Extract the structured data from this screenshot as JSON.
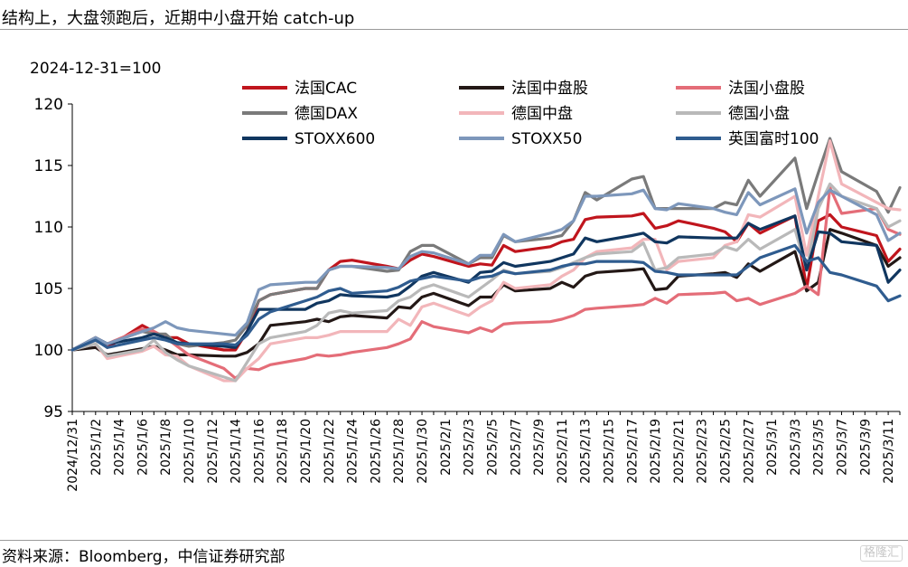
{
  "header": {
    "title": "结构上，大盘领跑后，近期中小盘开始 catch-up"
  },
  "footer": {
    "source": "资料来源：Bloomberg，中信证券研究部",
    "watermark": "格隆汇"
  },
  "chart_data": {
    "type": "line",
    "base_note": "2024-12-31=100",
    "xlabel": "",
    "ylabel": "",
    "ylim": [
      95,
      120
    ],
    "yticks": [
      95,
      100,
      105,
      110,
      115,
      120
    ],
    "xtick_labels": [
      "2024/12/31",
      "2025/1/2",
      "2025/1/4",
      "2025/1/6",
      "2025/1/8",
      "2025/1/10",
      "2025/1/12",
      "2025/1/14",
      "2025/1/16",
      "2025/1/18",
      "2025/1/20",
      "2025/1/22",
      "2025/1/24",
      "2025/1/26",
      "2025/1/28",
      "2025/1/30",
      "2025/2/1",
      "2025/2/3",
      "2025/2/5",
      "2025/2/7",
      "2025/2/9",
      "2025/2/11",
      "2025/2/13",
      "2025/2/15",
      "2025/2/17",
      "2025/2/19",
      "2025/2/21",
      "2025/2/23",
      "2025/2/25",
      "2025/2/27",
      "2025/3/1",
      "2025/3/3",
      "2025/3/5",
      "2025/3/7",
      "2025/3/9",
      "2025/3/11"
    ],
    "x_start": "2024-12-31",
    "x_end": "2025-03-12",
    "dates": [
      "2024-12-31",
      "2025-01-02",
      "2025-01-03",
      "2025-01-06",
      "2025-01-07",
      "2025-01-08",
      "2025-01-09",
      "2025-01-10",
      "2025-01-13",
      "2025-01-14",
      "2025-01-15",
      "2025-01-16",
      "2025-01-17",
      "2025-01-20",
      "2025-01-21",
      "2025-01-22",
      "2025-01-23",
      "2025-01-24",
      "2025-01-27",
      "2025-01-28",
      "2025-01-29",
      "2025-01-30",
      "2025-01-31",
      "2025-02-03",
      "2025-02-04",
      "2025-02-05",
      "2025-02-06",
      "2025-02-07",
      "2025-02-10",
      "2025-02-11",
      "2025-02-12",
      "2025-02-13",
      "2025-02-14",
      "2025-02-17",
      "2025-02-18",
      "2025-02-19",
      "2025-02-20",
      "2025-02-21",
      "2025-02-24",
      "2025-02-25",
      "2025-02-26",
      "2025-02-27",
      "2025-02-28",
      "2025-03-03",
      "2025-03-04",
      "2025-03-05",
      "2025-03-06",
      "2025-03-07",
      "2025-03-10",
      "2025-03-11",
      "2025-03-12"
    ],
    "series": [
      {
        "name": "法国CAC",
        "color": "#c0151d",
        "width": 3.2,
        "values": [
          100,
          101,
          100.2,
          102,
          101.5,
          101,
          101,
          100.5,
          100,
          100,
          101.5,
          104,
          104.5,
          105,
          105,
          106.5,
          107.2,
          107.3,
          106.8,
          106.6,
          107.3,
          107.8,
          107.6,
          106.8,
          107,
          106.9,
          108.5,
          108,
          108.4,
          108.8,
          109,
          110.6,
          110.8,
          110.9,
          111.1,
          109.9,
          110.1,
          110.5,
          109.9,
          109.6,
          108.8,
          110.3,
          109.5,
          110.9,
          105,
          110.5,
          111,
          110,
          109.3,
          107.2,
          108.2
        ]
      },
      {
        "name": "法国中盘股",
        "color": "#231816",
        "width": 3.2,
        "values": [
          100,
          100.2,
          99.6,
          100.1,
          100.3,
          100,
          99.6,
          99.6,
          99.5,
          99.5,
          99.8,
          100.5,
          102,
          102.3,
          102.5,
          102.3,
          102.7,
          102.8,
          102.6,
          103.5,
          103.4,
          104.3,
          104.6,
          103.6,
          104.3,
          104.3,
          105.3,
          104.8,
          105,
          105.5,
          105.1,
          106,
          106.3,
          106.5,
          106.6,
          104.9,
          105,
          106,
          106.2,
          106.3,
          105.9,
          107,
          106.4,
          108,
          104.8,
          105.5,
          109.8,
          109.5,
          108.5,
          106.8,
          107.5
        ]
      },
      {
        "name": "法国小盘股",
        "color": "#e46d78",
        "width": 3.2,
        "values": [
          100,
          101,
          100.5,
          101.7,
          101.5,
          101,
          100.3,
          99.6,
          98.5,
          97.7,
          98.5,
          98.4,
          98.8,
          99.3,
          99.6,
          99.5,
          99.6,
          99.8,
          100.2,
          100.5,
          100.9,
          102.3,
          101.9,
          101.4,
          101.8,
          101.5,
          102.1,
          102.2,
          102.3,
          102.5,
          102.8,
          103.3,
          103.4,
          103.6,
          103.7,
          104.2,
          103.8,
          104.5,
          104.6,
          104.7,
          104,
          104.2,
          103.7,
          104.6,
          105.2,
          104.5,
          113.2,
          111.1,
          111.5,
          109.8,
          109.4
        ]
      },
      {
        "name": "德国DAX",
        "color": "#7a7a7a",
        "width": 3.2,
        "values": [
          100,
          101,
          100.5,
          101.5,
          101.3,
          101.3,
          100.5,
          100.3,
          100.6,
          100.8,
          102,
          104,
          104.5,
          105,
          105,
          106.5,
          106.8,
          106.8,
          106.4,
          106.5,
          108,
          108.5,
          108.5,
          107,
          107.5,
          107.5,
          109.3,
          108.8,
          109.1,
          109.3,
          110.5,
          112.8,
          112.2,
          113.9,
          114.1,
          111.5,
          111.5,
          111.5,
          111.5,
          112,
          111.8,
          113.8,
          112.5,
          115.6,
          111.5,
          114.4,
          117.2,
          114.5,
          112.9,
          111.2,
          113.2
        ]
      },
      {
        "name": "德国中盘",
        "color": "#f2b6ba",
        "width": 3.2,
        "values": [
          100,
          100.5,
          99.3,
          99.9,
          100.3,
          99.6,
          99.5,
          98.7,
          97.5,
          97.5,
          98.5,
          99.3,
          100.5,
          101,
          101,
          101.2,
          101.5,
          101.5,
          101.5,
          102.5,
          102,
          103.5,
          103.8,
          102.8,
          103.5,
          104,
          105.5,
          105,
          105.3,
          106,
          106.5,
          107.5,
          108,
          108.3,
          109,
          109,
          106.5,
          107.2,
          107.5,
          108.5,
          108.8,
          111,
          110.8,
          112.5,
          107.7,
          112.5,
          117,
          113.5,
          112,
          111.5,
          111.4
        ]
      },
      {
        "name": "德国小盘",
        "color": "#b9b9b9",
        "width": 3.2,
        "values": [
          100,
          100.5,
          99.5,
          100,
          100.8,
          99.8,
          99.2,
          98.7,
          97.8,
          97.5,
          99,
          100.5,
          101,
          101.5,
          102,
          103,
          103.2,
          103,
          103.2,
          104,
          104.3,
          105,
          105.3,
          104.3,
          105,
          105.7,
          106.5,
          106.2,
          106.4,
          106.7,
          107.1,
          107.5,
          107.8,
          108,
          108.7,
          106.5,
          106.7,
          107.5,
          107.8,
          108.4,
          108.1,
          109,
          108.2,
          109.8,
          106.5,
          111.5,
          113.5,
          112.5,
          111.5,
          110,
          110.5
        ]
      },
      {
        "name": "STOXX600",
        "color": "#10365f",
        "width": 3.2,
        "values": [
          100,
          101,
          100.5,
          101,
          101.3,
          101,
          100.6,
          100.5,
          100.3,
          100.2,
          101.5,
          103.3,
          103.3,
          103.3,
          103.8,
          104,
          104.5,
          104.4,
          104.3,
          104.5,
          105.2,
          106,
          106.3,
          105.5,
          106.3,
          106.4,
          107.1,
          106.8,
          107.2,
          107.5,
          107.8,
          109.1,
          108.8,
          109.3,
          109.5,
          108.8,
          108.7,
          109.2,
          109.1,
          109.1,
          109.1,
          110.3,
          109.8,
          110.9,
          106.5,
          109.6,
          109.5,
          108.8,
          108.5,
          105.5,
          106.5
        ]
      },
      {
        "name": "STOXX50",
        "color": "#7d97bb",
        "width": 3.2,
        "values": [
          100,
          101,
          100.5,
          101.5,
          101.8,
          102.3,
          101.8,
          101.6,
          101.3,
          101.2,
          102.2,
          104.9,
          105.3,
          105.5,
          105.5,
          106.5,
          106.8,
          106.8,
          106.7,
          106.6,
          107.6,
          108,
          107.9,
          107,
          107.7,
          107.7,
          109.4,
          108.8,
          109.5,
          109.8,
          110.5,
          112.5,
          112.5,
          112.7,
          113,
          111.5,
          111.4,
          111.9,
          111.5,
          111.2,
          111,
          112.8,
          111.8,
          113.1,
          109.5,
          112,
          113,
          112.5,
          111,
          108.9,
          109.5
        ]
      },
      {
        "name": "英国富时100",
        "color": "#2f5c8f",
        "width": 3.2,
        "values": [
          100,
          100.8,
          100.2,
          100.8,
          101,
          100.8,
          100.5,
          100.5,
          100.5,
          100.4,
          101.2,
          102.5,
          103.1,
          104,
          104.3,
          104.8,
          105,
          104.6,
          104.8,
          105.1,
          105.6,
          105.8,
          106,
          105.6,
          105.9,
          106,
          106.4,
          106.2,
          106.5,
          106.8,
          107,
          107,
          107.2,
          107.2,
          107.1,
          106.4,
          106.3,
          106.1,
          106.1,
          106.1,
          106.1,
          106.8,
          107.5,
          108.5,
          107.2,
          107.5,
          106.3,
          106.1,
          105.2,
          104,
          104.4
        ]
      }
    ]
  }
}
